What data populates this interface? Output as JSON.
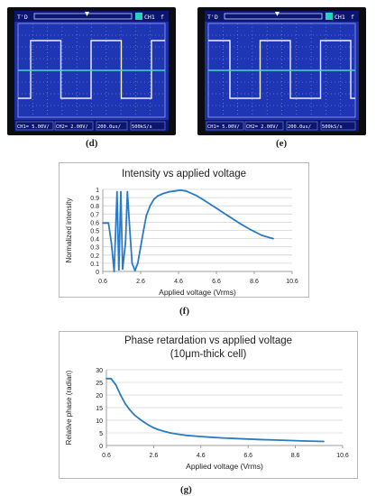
{
  "scopes": [
    {
      "id": "d",
      "label": "(d)",
      "header": {
        "trigger_mode": "T'D",
        "trigger_channel": "CH1",
        "trigger_slope": "f"
      },
      "status": [
        "CH1= 5.00V/",
        "CH2= 2.00V/",
        "200.0us/",
        "500kS/s"
      ],
      "trace_colors": {
        "ch1": "#f0f0ea",
        "ch2": "#46d6c8"
      }
    },
    {
      "id": "e",
      "label": "(e)",
      "header": {
        "trigger_mode": "T'D",
        "trigger_channel": "CH1",
        "trigger_slope": "f"
      },
      "status": [
        "CH1= 5.00V/",
        "CH2= 2.00V/",
        "200.0us/",
        "500kS/s"
      ],
      "trace_colors": {
        "ch1": "#f0f0ea",
        "ch2": "#46d6c8"
      }
    }
  ],
  "charts": {
    "f": {
      "label": "(f)",
      "title": "Intensity vs applied voltage",
      "xlabel": "Applied voltage (Vrms)",
      "ylabel": "Normalized intensity"
    },
    "g": {
      "label": "(g)",
      "title_line1": "Phase retardation vs applied voltage",
      "title_line2": "(10μm-thick cell)",
      "xlabel": "Applied voltage (Vrms)",
      "ylabel": "Relative phase (radian)"
    }
  },
  "chart_data": [
    {
      "type": "line",
      "title": "Intensity vs applied voltage",
      "xlabel": "Applied voltage (Vrms)",
      "ylabel": "Normalized intensity",
      "xlim": [
        0.6,
        10.6
      ],
      "ylim": [
        0,
        1
      ],
      "xticks": [
        "0.6",
        "2.6",
        "4.6",
        "6.6",
        "8.6",
        "10.6"
      ],
      "yticks": [
        "0",
        "0.1",
        "0.2",
        "0.3",
        "0.4",
        "0.5",
        "0.6",
        "0.7",
        "0.8",
        "0.9",
        "1"
      ],
      "grid": "horizontal",
      "color": "#2b7bc4",
      "x": [
        0.6,
        0.9,
        1.05,
        1.2,
        1.35,
        1.45,
        1.55,
        1.65,
        1.8,
        1.9,
        2.0,
        2.15,
        2.3,
        2.45,
        2.6,
        2.75,
        2.9,
        3.1,
        3.3,
        3.5,
        3.8,
        4.1,
        4.4,
        4.7,
        5.0,
        5.5,
        6.0,
        6.6,
        7.2,
        7.8,
        8.4,
        9.0,
        9.6
      ],
      "y": [
        0.59,
        0.59,
        0.35,
        0.0,
        0.97,
        0.02,
        0.97,
        0.03,
        0.35,
        0.97,
        0.6,
        0.1,
        0.01,
        0.1,
        0.3,
        0.5,
        0.68,
        0.8,
        0.88,
        0.92,
        0.95,
        0.97,
        0.98,
        0.99,
        0.98,
        0.93,
        0.86,
        0.77,
        0.68,
        0.59,
        0.51,
        0.44,
        0.4
      ]
    },
    {
      "type": "line",
      "title": "Phase retardation vs applied voltage (10μm-thick cell)",
      "xlabel": "Applied voltage (Vrms)",
      "ylabel": "Relative phase (radian)",
      "xlim": [
        0.6,
        10.6
      ],
      "ylim": [
        0,
        30
      ],
      "xticks": [
        "0.6",
        "2.6",
        "4.6",
        "6.6",
        "8.6",
        "10.6"
      ],
      "yticks": [
        "0",
        "5",
        "10",
        "15",
        "20",
        "25",
        "30"
      ],
      "grid": "horizontal",
      "color": "#2b7bc4",
      "x": [
        0.6,
        0.8,
        1.0,
        1.2,
        1.4,
        1.6,
        1.8,
        2.0,
        2.2,
        2.4,
        2.6,
        2.8,
        3.0,
        3.3,
        3.6,
        4.0,
        4.5,
        5.0,
        5.5,
        6.0,
        7.0,
        8.0,
        9.0,
        9.8
      ],
      "y": [
        26.5,
        26.5,
        24.0,
        20.0,
        16.5,
        14.0,
        12.0,
        10.5,
        9.2,
        8.0,
        7.0,
        6.3,
        5.7,
        5.0,
        4.5,
        4.0,
        3.6,
        3.3,
        3.0,
        2.8,
        2.4,
        2.1,
        1.8,
        1.6
      ]
    }
  ]
}
